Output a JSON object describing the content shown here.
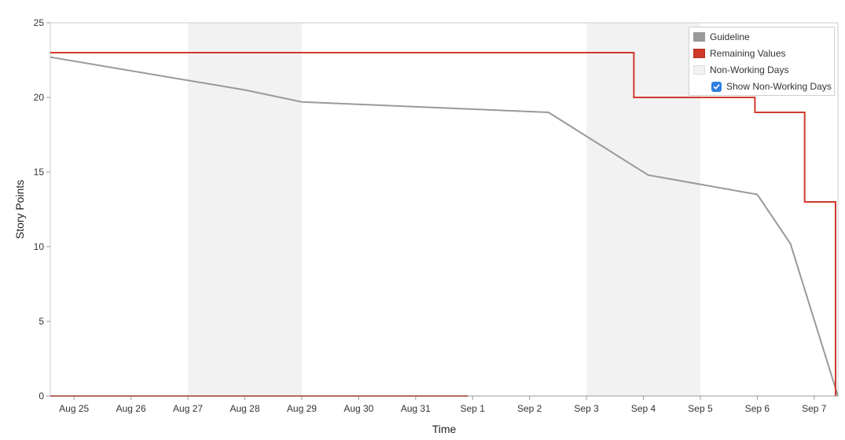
{
  "chart_data": {
    "type": "line",
    "xlabel": "Time",
    "ylabel": "Story Points",
    "ylim": [
      0,
      25
    ],
    "yticks": [
      0,
      5,
      10,
      15,
      20,
      25
    ],
    "xticks": [
      "Aug 25",
      "Aug 26",
      "Aug 27",
      "Aug 28",
      "Aug 29",
      "Aug 30",
      "Aug 31",
      "Sep 1",
      "Sep 2",
      "Sep 3",
      "Sep 4",
      "Sep 5",
      "Sep 6",
      "Sep 7"
    ],
    "xlim": [
      "Aug 24 14:00",
      "Sep 7 10:00"
    ],
    "non_working_days": [
      [
        "Aug 27",
        "Aug 29"
      ],
      [
        "Sep 3",
        "Sep 5"
      ]
    ],
    "series": [
      {
        "name": "Guideline",
        "color": "#999999",
        "points": [
          [
            "Aug 24 14:00",
            22.7
          ],
          [
            "Aug 28 00:00",
            20.5
          ],
          [
            "Aug 29 00:00",
            19.7
          ],
          [
            "Sep 2 08:00",
            19.0
          ],
          [
            "Sep 4 02:00",
            14.8
          ],
          [
            "Sep 6 00:00",
            13.5
          ],
          [
            "Sep 6 14:00",
            10.2
          ],
          [
            "Sep 7 10:00",
            0
          ]
        ]
      },
      {
        "name": "Remaining Values",
        "color": "#d0392b",
        "step": true,
        "points": [
          [
            "Aug 24 14:00",
            23
          ],
          [
            "Sep 3 20:00",
            23
          ],
          [
            "Sep 3 20:00",
            20
          ],
          [
            "Sep 5 23:00",
            20
          ],
          [
            "Sep 5 23:00",
            19
          ],
          [
            "Sep 6 20:00",
            19
          ],
          [
            "Sep 6 20:00",
            13
          ],
          [
            "Sep 7 09:00",
            13
          ],
          [
            "Sep 7 09:00",
            0
          ]
        ]
      },
      {
        "name": "Remaining Values (zero segment)",
        "color": "#d0392b",
        "points": [
          [
            "Aug 24 14:00",
            0
          ],
          [
            "Aug 31 22:00",
            0
          ]
        ]
      }
    ],
    "legend": {
      "placement": "top-right",
      "items": [
        {
          "label": "Guideline",
          "color": "#999999"
        },
        {
          "label": "Remaining Values",
          "color": "#d0392b"
        },
        {
          "label": "Non-Working Days",
          "color": "#f2f2f2"
        }
      ],
      "toggle": {
        "label": "Show Non-Working Days",
        "checked": true
      }
    },
    "grid": false
  }
}
